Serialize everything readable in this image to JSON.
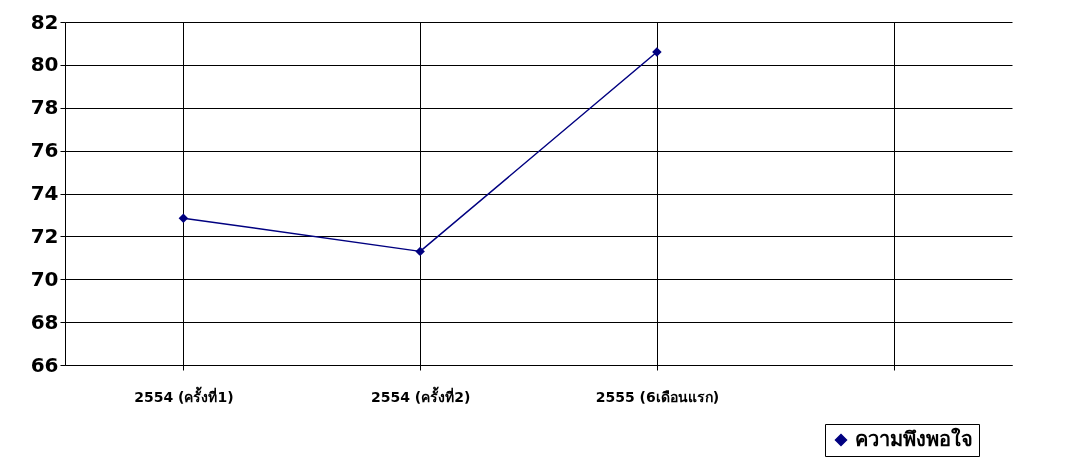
{
  "chart_data": {
    "type": "line",
    "categories": [
      "2554 (ครั้งที่1)",
      "2554 (ครั้งที่2)",
      "2555 (6เดือนแรก)",
      null
    ],
    "series": [
      {
        "name": "ความพึงพอใจ",
        "color": "#000080",
        "values": [
          72.85,
          71.3,
          80.6,
          null
        ]
      }
    ],
    "ylim": [
      66,
      82
    ],
    "yticks": [
      66,
      68,
      70,
      72,
      74,
      76,
      78,
      80,
      82
    ],
    "grid": true,
    "legend": "bottom right",
    "marker": "diamond",
    "line_style": "solid"
  }
}
